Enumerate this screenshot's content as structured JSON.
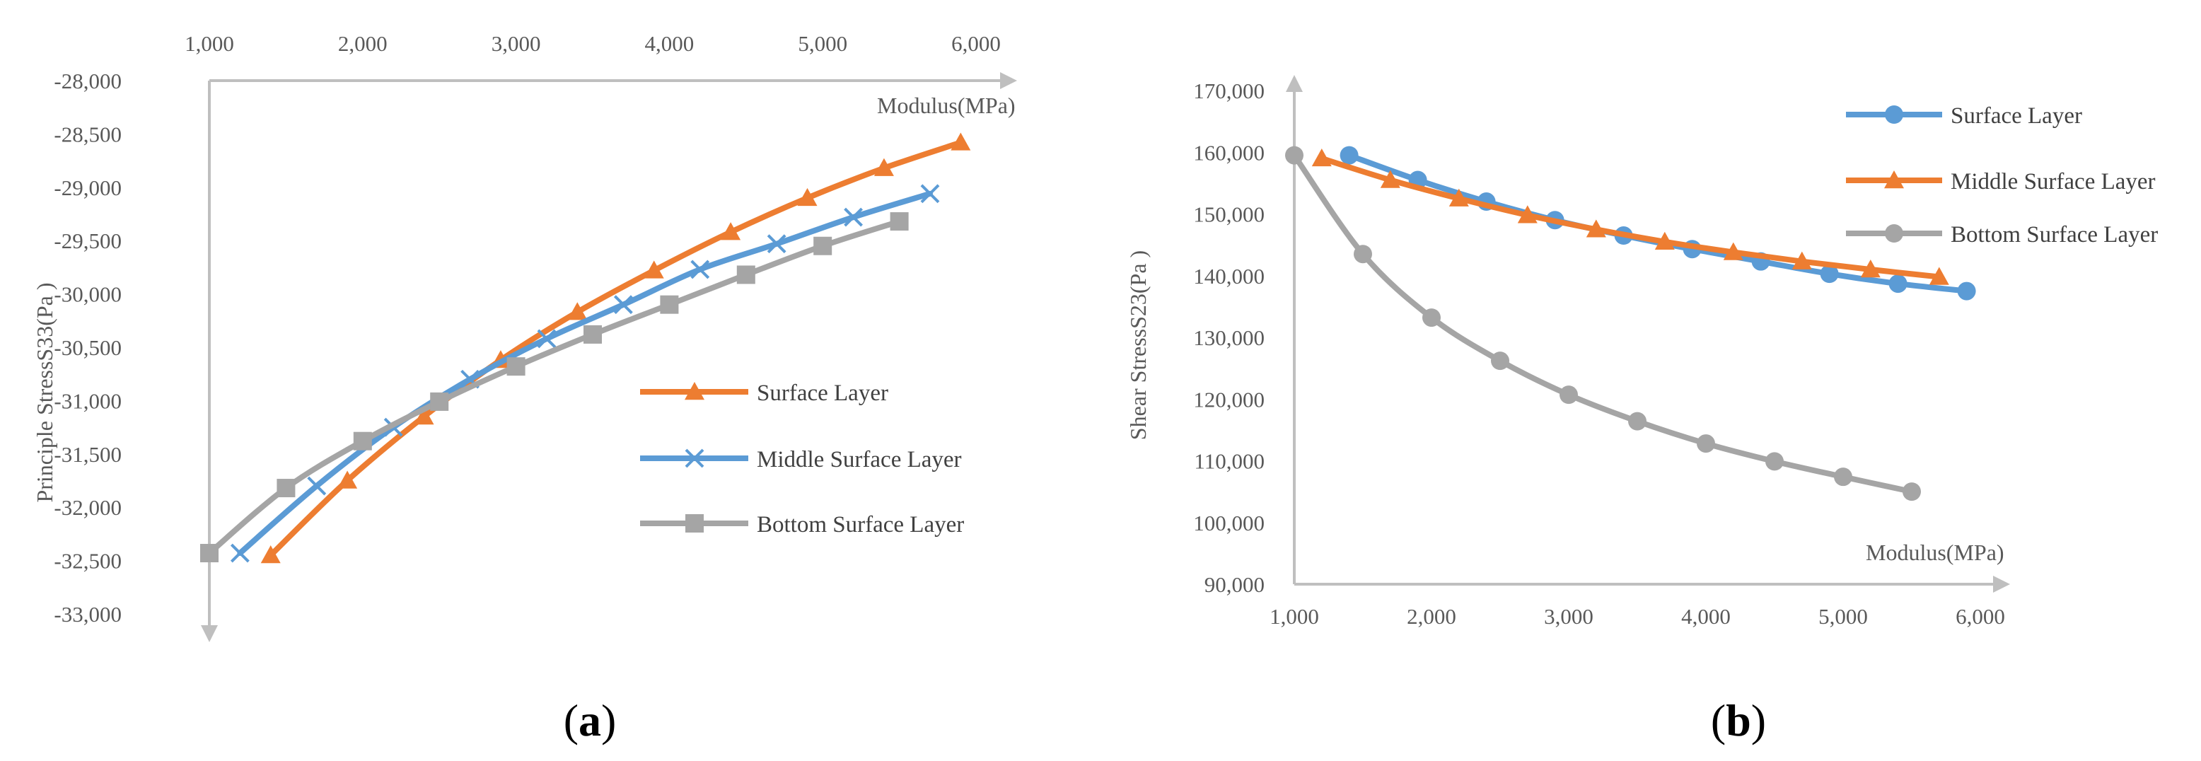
{
  "colors": {
    "surface": "#ED7D31",
    "middle": "#5B9BD5",
    "bottom": "#A5A5A5",
    "axis": "#BFBFBF",
    "text": "#595959"
  },
  "panel_labels": {
    "a": {
      "open": "(",
      "letter": "a",
      "close": ")"
    },
    "b": {
      "open": "(",
      "letter": "b",
      "close": ")"
    }
  },
  "chart_data": [
    {
      "id": "a",
      "type": "line",
      "title": "",
      "xlabel": "Modulus(MPa)",
      "ylabel": "Principle StressS33(Pa )",
      "xlim": [
        1000,
        6000
      ],
      "ylim": [
        -33000,
        -28000
      ],
      "y_reversed": true,
      "xticks": [
        1000,
        2000,
        3000,
        4000,
        5000,
        6000
      ],
      "xtick_labels": [
        "1,000",
        "2,000",
        "3,000",
        "4,000",
        "5,000",
        "6,000"
      ],
      "yticks": [
        -28000,
        -28500,
        -29000,
        -29500,
        -30000,
        -30500,
        -31000,
        -31500,
        -32000,
        -32500,
        -33000
      ],
      "ytick_labels": [
        "-28,000",
        "-28,500",
        "-29,000",
        "-29,500",
        "-30,000",
        "-30,500",
        "-31,000",
        "-31,500",
        "-32,000",
        "-32,500",
        "-33,000"
      ],
      "legend": [
        "Surface Layer",
        "Middle Surface Layer",
        "Bottom Surface Layer"
      ],
      "legend_position": "right",
      "series": [
        {
          "name": "Surface Layer",
          "color_key": "surface",
          "marker": "triangle",
          "x": [
            1400,
            1900,
            2400,
            2900,
            3400,
            3900,
            4400,
            4900,
            5400,
            5900
          ],
          "y": [
            -32450,
            -31750,
            -31150,
            -30620,
            -30170,
            -29780,
            -29420,
            -29100,
            -28820,
            -28580
          ]
        },
        {
          "name": "Middle Surface Layer",
          "color_key": "middle",
          "marker": "x",
          "x": [
            1200,
            1700,
            2200,
            2700,
            3200,
            3700,
            4200,
            4700,
            5200,
            5700
          ],
          "y": [
            -32430,
            -31800,
            -31250,
            -30800,
            -30420,
            -30100,
            -29770,
            -29530,
            -29280,
            -29060
          ]
        },
        {
          "name": "Bottom Surface Layer",
          "color_key": "bottom",
          "marker": "square",
          "x": [
            1000,
            1500,
            2000,
            2500,
            3000,
            3500,
            4000,
            4500,
            5000,
            5500
          ],
          "y": [
            -32430,
            -31820,
            -31380,
            -31010,
            -30680,
            -30380,
            -30100,
            -29820,
            -29550,
            -29320
          ]
        }
      ]
    },
    {
      "id": "b",
      "type": "line",
      "title": "",
      "xlabel": "Modulus(MPa)",
      "ylabel": "Shear StressS23(Pa )",
      "xlim": [
        1000,
        6000
      ],
      "ylim": [
        90000,
        170000
      ],
      "y_reversed": false,
      "xticks": [
        1000,
        2000,
        3000,
        4000,
        5000,
        6000
      ],
      "xtick_labels": [
        "1,000",
        "2,000",
        "3,000",
        "4,000",
        "5,000",
        "6,000"
      ],
      "yticks": [
        90000,
        100000,
        110000,
        120000,
        130000,
        140000,
        150000,
        160000,
        170000
      ],
      "ytick_labels": [
        "90,000",
        "100,000",
        "110,000",
        "120,000",
        "130,000",
        "140,000",
        "150,000",
        "160,000",
        "170,000"
      ],
      "legend": [
        "Surface Layer",
        "Middle Surface Layer",
        "Bottom Surface Layer"
      ],
      "legend_position": "top-right",
      "series": [
        {
          "name": "Surface Layer",
          "color_key": "middle",
          "marker": "circle",
          "x": [
            1400,
            1900,
            2400,
            2900,
            3400,
            3900,
            4400,
            4900,
            5400,
            5900
          ],
          "y": [
            159500,
            155500,
            152000,
            149000,
            146500,
            144300,
            142300,
            140300,
            138700,
            137500
          ]
        },
        {
          "name": "Middle Surface Layer",
          "color_key": "surface",
          "marker": "triangle",
          "x": [
            1200,
            1700,
            2200,
            2700,
            3200,
            3700,
            4200,
            4700,
            5200,
            5700
          ],
          "y": [
            159000,
            155500,
            152500,
            149800,
            147500,
            145500,
            143800,
            142300,
            141000,
            139800
          ]
        },
        {
          "name": "Bottom Surface Layer",
          "color_key": "bottom",
          "marker": "circle",
          "x": [
            1000,
            1500,
            2000,
            2500,
            3000,
            3500,
            4000,
            4500,
            5000,
            5500
          ],
          "y": [
            159500,
            143500,
            133200,
            126200,
            120700,
            116400,
            112800,
            109900,
            107400,
            105000
          ]
        }
      ]
    }
  ]
}
